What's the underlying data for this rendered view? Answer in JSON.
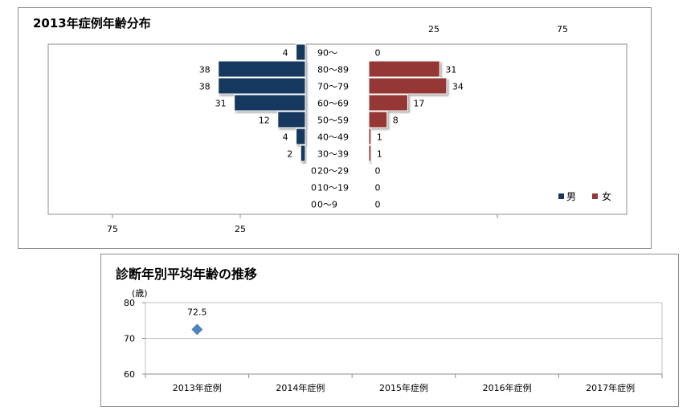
{
  "chart_data": [
    {
      "type": "bar",
      "orientation": "horizontal-butterfly",
      "title": "2013年症例年齢分布",
      "categories": [
        "90～",
        "80～89",
        "70～79",
        "60～69",
        "50～59",
        "40～49",
        "30～39",
        "20～29",
        "10～19",
        "0～9"
      ],
      "series": [
        {
          "name": "男",
          "color": "#17375e",
          "values": [
            4,
            38,
            38,
            31,
            12,
            4,
            2,
            0,
            0,
            0
          ]
        },
        {
          "name": "女",
          "color": "#953735",
          "values": [
            0,
            31,
            34,
            17,
            8,
            1,
            1,
            0,
            0,
            0
          ]
        }
      ],
      "top_tick_labels": [
        "25",
        "75"
      ],
      "bottom_tick_labels": [
        "75",
        "25"
      ],
      "legend_position": "bottom-right",
      "grid": false
    },
    {
      "type": "scatter",
      "title": "診断年別平均年齢の推移",
      "ylabel": "(歳)",
      "categories": [
        "2013年症例",
        "2014年症例",
        "2015年症例",
        "2016年症例",
        "2017年症例"
      ],
      "series": [
        {
          "color": "#4f81bd",
          "values": [
            72.5,
            null,
            null,
            null,
            null
          ],
          "marker": "diamond"
        }
      ],
      "data_labels": [
        "72.5"
      ],
      "ylim": [
        60,
        80
      ],
      "yticks": [
        "60",
        "70",
        "80"
      ],
      "grid": true
    }
  ]
}
